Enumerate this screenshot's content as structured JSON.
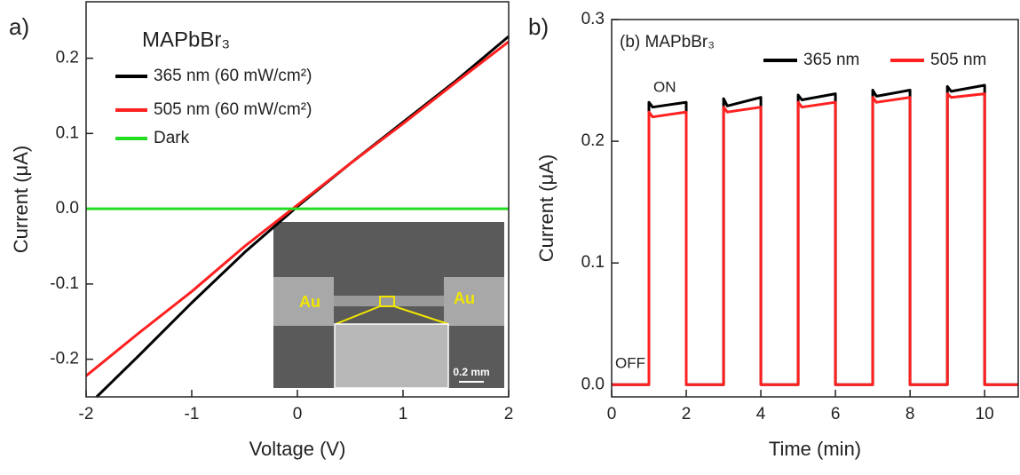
{
  "chart_data": [
    {
      "type": "line",
      "panel_label": "a)",
      "title": "MAPbBr₃",
      "x_label": "Voltage (V)",
      "y_label": "Current (μA)",
      "xlim": [
        -2,
        2
      ],
      "ylim": [
        -0.25,
        0.275
      ],
      "xticks": [
        -2,
        -1,
        0,
        1,
        2
      ],
      "yticks": [
        -0.2,
        -0.1,
        {
          "value": 0,
          "label": "0.0"
        },
        0.1,
        0.2
      ],
      "series": [
        {
          "name": "365 nm (60 mW/cm²)",
          "color": "#000000",
          "x": [
            -1.9,
            -1.5,
            -1,
            -0.5,
            0,
            0.5,
            1,
            1.5,
            2
          ],
          "values": [
            -0.25,
            -0.195,
            -0.125,
            -0.058,
            0.003,
            0.06,
            0.115,
            0.17,
            0.229
          ]
        },
        {
          "name": "505 nm (60 mW/cm²)",
          "color": "#ff2020",
          "x": [
            -2,
            -1.5,
            -1,
            -0.5,
            0,
            0.5,
            1,
            1.5,
            2
          ],
          "values": [
            -0.222,
            -0.165,
            -0.11,
            -0.05,
            0.005,
            0.06,
            0.113,
            0.168,
            0.222
          ]
        },
        {
          "name": "Dark",
          "color": "#22dd22",
          "x": [
            -2,
            2
          ],
          "values": [
            0,
            0
          ]
        }
      ],
      "inset": {
        "labels": [
          "Au",
          "Au",
          "0.2 mm"
        ]
      }
    },
    {
      "type": "line",
      "panel_label": "b)",
      "title": "(b) MAPbBr₃",
      "x_label": "Time (min)",
      "y_label": "Current (μA)",
      "xlim": [
        0,
        10.9
      ],
      "ylim": [
        -0.01,
        0.3
      ],
      "xticks": [
        0,
        2,
        4,
        6,
        8,
        10
      ],
      "yticks": [
        {
          "value": 0,
          "label": "0.0"
        },
        0.1,
        0.2,
        0.3
      ],
      "annotations": [
        "ON",
        "OFF"
      ],
      "series": [
        {
          "name": "365 nm",
          "color": "#000000",
          "x": [
            0,
            1,
            1,
            1.1,
            2,
            2,
            3,
            3,
            3.1,
            4,
            4,
            5,
            5,
            5.1,
            6,
            6,
            7,
            7,
            7.1,
            8,
            8,
            9,
            9,
            9.1,
            10,
            10,
            10.9
          ],
          "values": [
            0,
            0,
            0.232,
            0.228,
            0.232,
            0,
            0,
            0.235,
            0.229,
            0.236,
            0,
            0,
            0.238,
            0.234,
            0.239,
            0,
            0,
            0.242,
            0.237,
            0.242,
            0,
            0,
            0.245,
            0.241,
            0.246,
            0,
            0
          ]
        },
        {
          "name": "505 nm",
          "color": "#ff2020",
          "x": [
            0,
            1,
            1,
            1.1,
            2,
            2,
            3,
            3,
            3.1,
            4,
            4,
            5,
            5,
            5.1,
            6,
            6,
            7,
            7,
            7.1,
            8,
            8,
            9,
            9,
            9.1,
            10,
            10,
            10.9
          ],
          "values": [
            0,
            0,
            0.224,
            0.22,
            0.224,
            0,
            0,
            0.228,
            0.224,
            0.228,
            0,
            0,
            0.232,
            0.228,
            0.232,
            0,
            0,
            0.236,
            0.232,
            0.236,
            0,
            0,
            0.239,
            0.236,
            0.239,
            0,
            0
          ]
        }
      ]
    }
  ]
}
